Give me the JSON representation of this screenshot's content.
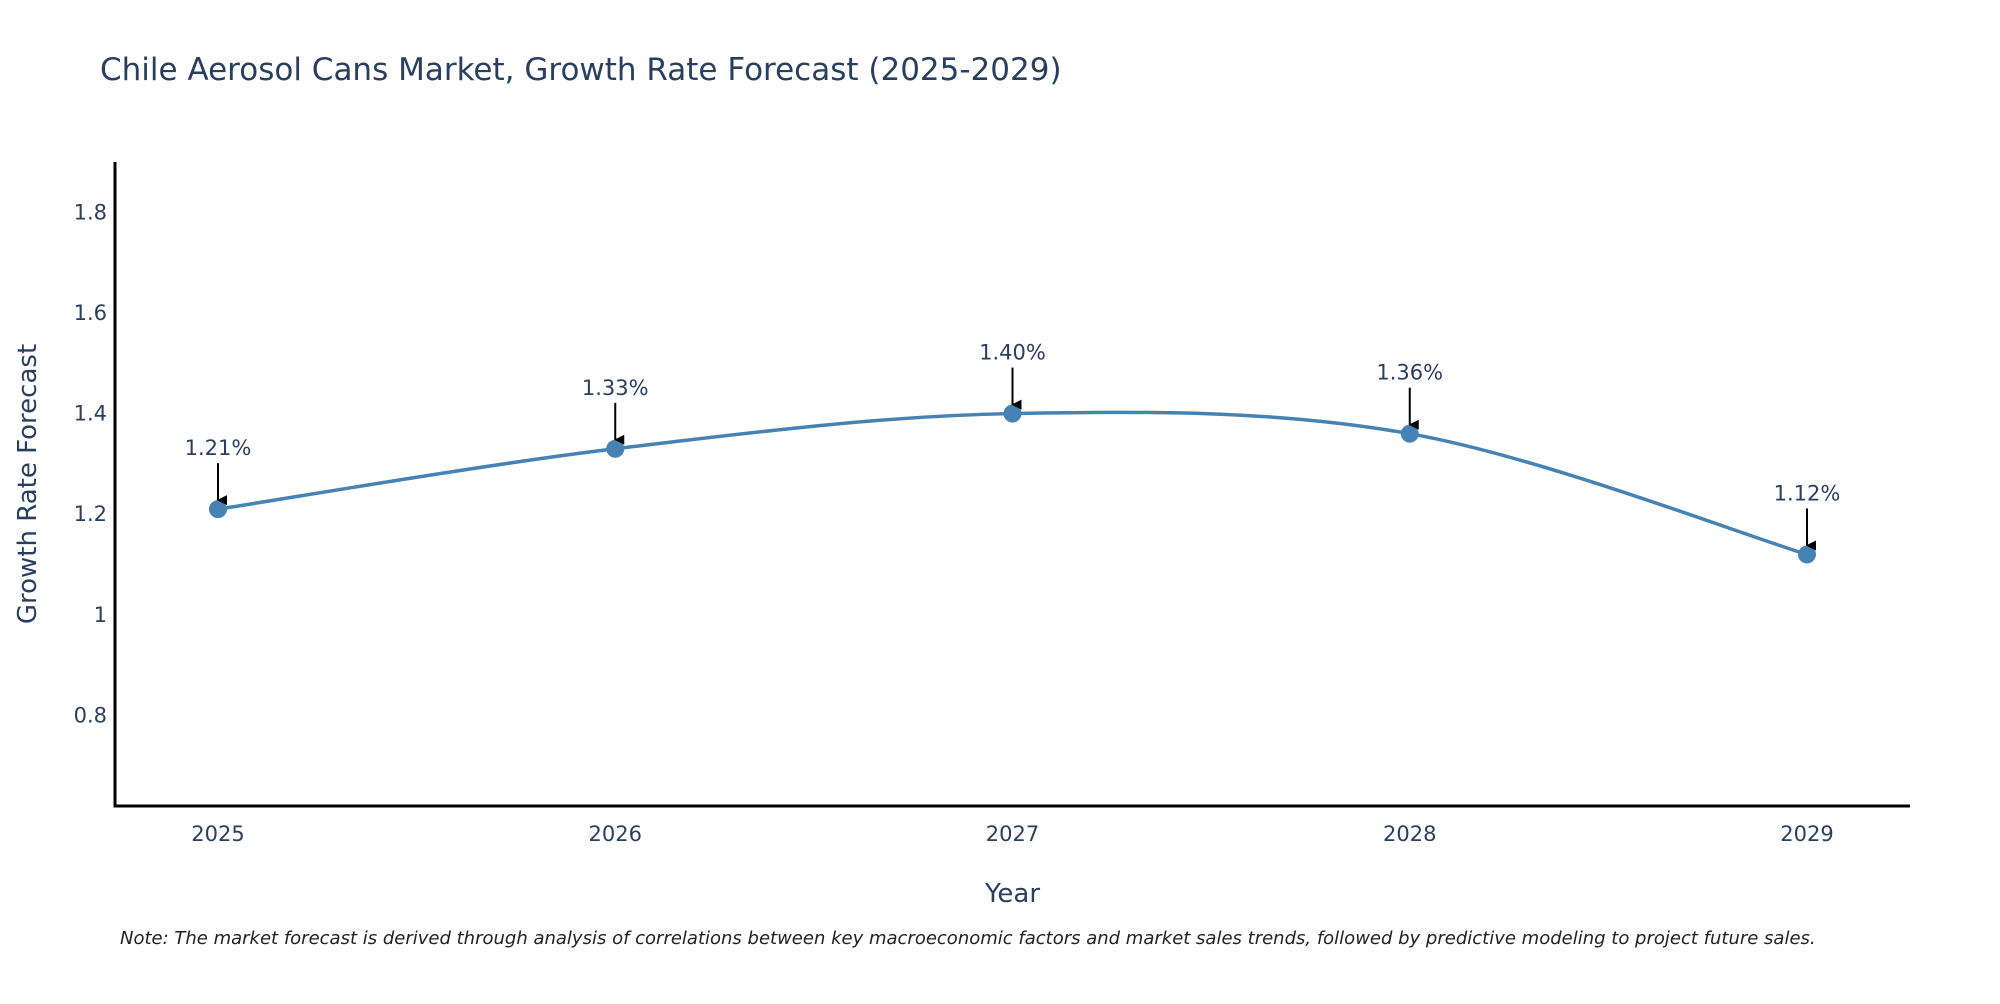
{
  "chart_data": {
    "type": "line",
    "title": "Chile Aerosol Cans Market, Growth Rate Forecast (2025-2029)",
    "xlabel": "Year",
    "ylabel": "Growth Rate Forecast",
    "categories": [
      "2025",
      "2026",
      "2027",
      "2028",
      "2029"
    ],
    "series": [
      {
        "name": "Growth Rate Forecast",
        "values": [
          1.21,
          1.33,
          1.4,
          1.36,
          1.12
        ],
        "color": "#4682b4",
        "line_shape": "spline"
      }
    ],
    "data_labels": [
      "1.21%",
      "1.33%",
      "1.40%",
      "1.36%",
      "1.12%"
    ],
    "ylim": [
      0.62,
      1.9
    ],
    "yticks": [
      0.8,
      1,
      1.2,
      1.4,
      1.6,
      1.8
    ],
    "ytick_labels": [
      "0.8",
      "1",
      "1.2",
      "1.4",
      "1.6",
      "1.8"
    ],
    "grid": false,
    "legend": "none",
    "note": "Note: The market forecast is derived through analysis of correlations between key macroeconomic factors and market sales trends, followed by predictive modeling to project future sales."
  }
}
